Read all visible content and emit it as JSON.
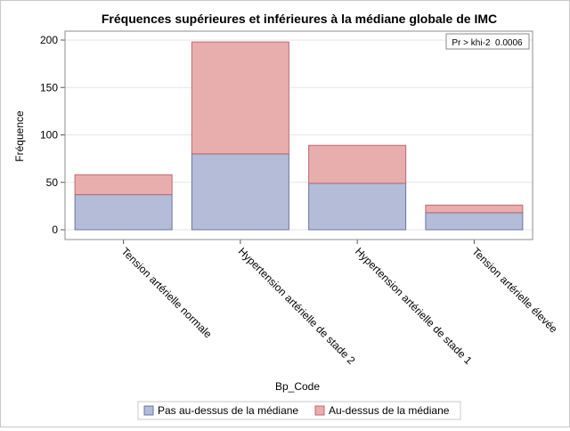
{
  "chart_data": {
    "type": "bar",
    "stacked": true,
    "title": "Fréquences supérieures et inférieures à la médiane globale de IMC",
    "xlabel": "Bp_Code",
    "ylabel": "Fréquence",
    "categories": [
      "Tension artérielle normale",
      "Hypertension artérielle de stade 2",
      "Hypertension artérielle de stade 1",
      "Tension artérielle élevée"
    ],
    "series": [
      {
        "name": "Pas au-dessus de la médiane",
        "values": [
          37,
          80,
          49,
          18
        ],
        "color": "#b4bcd8",
        "edge": "#6a76a8"
      },
      {
        "name": "Au-dessus de la médiane",
        "values": [
          21,
          118,
          40,
          8
        ],
        "color": "#e8aeae",
        "edge": "#b86a72"
      }
    ],
    "ylim": [
      0,
      210
    ],
    "yticks": [
      0,
      50,
      100,
      150,
      200
    ],
    "grid": true,
    "legend_position": "bottom",
    "annotation": "Pr > khi-2  0.0006"
  }
}
